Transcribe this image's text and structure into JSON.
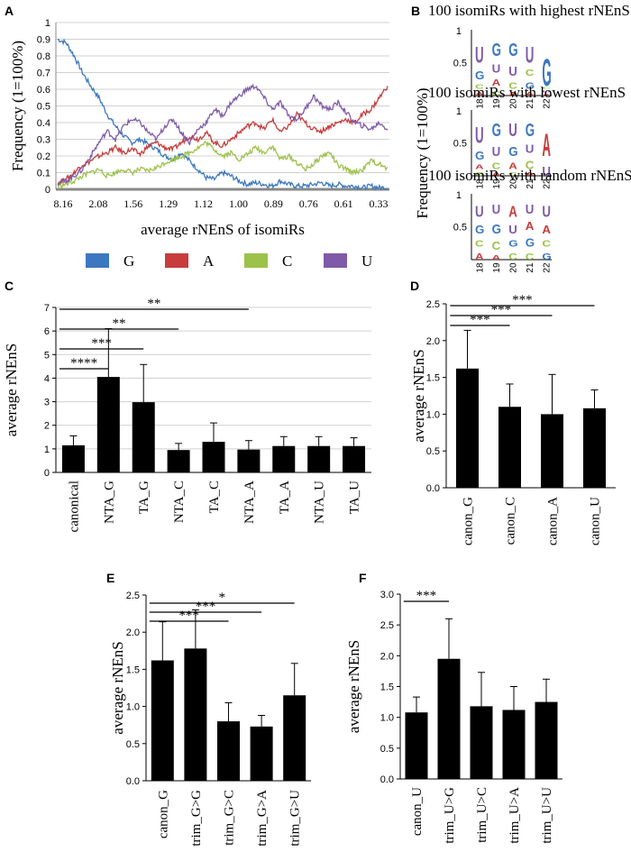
{
  "chart_data": [
    {
      "id": "A",
      "type": "line",
      "panel_label": "A",
      "ylabel": "Frequency (1=100%)",
      "xlabel": "average rNEnS of isomiRs",
      "ylim": [
        0,
        1
      ],
      "y_ticks": [
        "0",
        "0.1",
        "0.2",
        "0.3",
        "0.4",
        "0.5",
        "0.6",
        "0.7",
        "0.8",
        "0.9",
        "1"
      ],
      "x_ticks": [
        "8.16",
        "2.08",
        "1.56",
        "1.29",
        "1.12",
        "1.00",
        "0.89",
        "0.76",
        "0.61",
        "0.33"
      ],
      "series": [
        {
          "name": "G",
          "color": "#3c78c0",
          "values": [
            0.9,
            0.88,
            0.8,
            0.7,
            0.62,
            0.55,
            0.45,
            0.38,
            0.32,
            0.28,
            0.3,
            0.27,
            0.24,
            0.2,
            0.18,
            0.22,
            0.17,
            0.12,
            0.07,
            0.06,
            0.1,
            0.08,
            0.05,
            0.03,
            0.04,
            0.03,
            0.02,
            0.05,
            0.03,
            0.02,
            0.02,
            0.03,
            0.04,
            0.02,
            0.03,
            0.02,
            0.02,
            0.01,
            0.02,
            0.01,
            0.01
          ]
        },
        {
          "name": "A",
          "color": "#c83c3c",
          "values": [
            0.04,
            0.06,
            0.1,
            0.15,
            0.17,
            0.2,
            0.22,
            0.25,
            0.22,
            0.24,
            0.21,
            0.26,
            0.28,
            0.25,
            0.24,
            0.28,
            0.32,
            0.3,
            0.34,
            0.28,
            0.26,
            0.3,
            0.34,
            0.38,
            0.4,
            0.36,
            0.42,
            0.34,
            0.38,
            0.45,
            0.4,
            0.36,
            0.35,
            0.38,
            0.4,
            0.42,
            0.4,
            0.45,
            0.48,
            0.55,
            0.62
          ]
        },
        {
          "name": "C",
          "color": "#9cc24a",
          "values": [
            0.02,
            0.03,
            0.05,
            0.08,
            0.1,
            0.12,
            0.08,
            0.1,
            0.12,
            0.1,
            0.12,
            0.11,
            0.13,
            0.16,
            0.18,
            0.2,
            0.22,
            0.25,
            0.28,
            0.24,
            0.2,
            0.22,
            0.18,
            0.21,
            0.25,
            0.22,
            0.26,
            0.18,
            0.2,
            0.16,
            0.12,
            0.15,
            0.2,
            0.22,
            0.14,
            0.12,
            0.1,
            0.12,
            0.17,
            0.15,
            0.12
          ]
        },
        {
          "name": "U",
          "color": "#7f5aa8",
          "values": [
            0.04,
            0.05,
            0.08,
            0.12,
            0.2,
            0.28,
            0.35,
            0.3,
            0.38,
            0.42,
            0.4,
            0.34,
            0.3,
            0.38,
            0.42,
            0.34,
            0.28,
            0.36,
            0.4,
            0.48,
            0.44,
            0.52,
            0.56,
            0.6,
            0.62,
            0.55,
            0.48,
            0.52,
            0.44,
            0.42,
            0.48,
            0.56,
            0.5,
            0.48,
            0.52,
            0.46,
            0.4,
            0.38,
            0.36,
            0.4,
            0.36
          ]
        }
      ],
      "legend": [
        "G",
        "A",
        "C",
        "U"
      ],
      "legend_position": "bottom"
    },
    {
      "id": "C",
      "type": "bar",
      "panel_label": "C",
      "ylabel": "average rNEnS",
      "ylim": [
        0,
        7
      ],
      "y_ticks": [
        "0",
        "1",
        "2",
        "3",
        "4",
        "5",
        "6",
        "7"
      ],
      "categories": [
        "canonical",
        "NTA_G",
        "TA_G",
        "NTA_C",
        "TA_C",
        "NTA_A",
        "TA_A",
        "NTA_U",
        "TA_U"
      ],
      "values": [
        1.15,
        4.05,
        2.98,
        0.95,
        1.3,
        0.97,
        1.12,
        1.12,
        1.12
      ],
      "errors": [
        0.4,
        2.05,
        1.6,
        0.28,
        0.8,
        0.38,
        0.4,
        0.4,
        0.35
      ],
      "significance": [
        {
          "from": 0,
          "to": 1,
          "label": "****"
        },
        {
          "from": 0,
          "to": 2,
          "label": "***"
        },
        {
          "from": 0,
          "to": 3,
          "label": "**"
        },
        {
          "from": 0,
          "to": 5,
          "label": "**"
        }
      ]
    },
    {
      "id": "D",
      "type": "bar",
      "panel_label": "D",
      "ylabel": "average rNEnS",
      "ylim": [
        0,
        2.5
      ],
      "y_ticks": [
        "0.0",
        "0.5",
        "1.0",
        "1.5",
        "2.0",
        "2.5"
      ],
      "categories": [
        "canon_G",
        "canon_C",
        "canon_A",
        "canon_U"
      ],
      "values": [
        1.62,
        1.1,
        1.0,
        1.08
      ],
      "errors": [
        0.52,
        0.31,
        0.54,
        0.25
      ],
      "significance": [
        {
          "from": 0,
          "to": 1,
          "label": "***"
        },
        {
          "from": 0,
          "to": 2,
          "label": "***"
        },
        {
          "from": 0,
          "to": 3,
          "label": "***"
        }
      ]
    },
    {
      "id": "E",
      "type": "bar",
      "panel_label": "E",
      "ylabel": "average rNEnS",
      "ylim": [
        0,
        2.5
      ],
      "y_ticks": [
        "0.0",
        "0.5",
        "1.0",
        "1.5",
        "2.0",
        "2.5"
      ],
      "categories": [
        "canon_G",
        "trim_G>G",
        "trim_G>C",
        "trim_G>A",
        "trim_G>U"
      ],
      "values": [
        1.62,
        1.78,
        0.8,
        0.73,
        1.15
      ],
      "errors": [
        0.52,
        0.52,
        0.25,
        0.15,
        0.43
      ],
      "significance": [
        {
          "from": 0,
          "to": 2,
          "label": "***"
        },
        {
          "from": 0,
          "to": 3,
          "label": "***"
        },
        {
          "from": 0,
          "to": 4,
          "label": "*"
        }
      ]
    },
    {
      "id": "F",
      "type": "bar",
      "panel_label": "F",
      "ylabel": "average rNEnS",
      "ylim": [
        0,
        3.0
      ],
      "y_ticks": [
        "0.0",
        "0.5",
        "1.0",
        "1.5",
        "2.0",
        "2.5",
        "3.0"
      ],
      "categories": [
        "canon_U",
        "trim_U>G",
        "trim_U>C",
        "trim_U>A",
        "trim_U>U"
      ],
      "values": [
        1.08,
        1.95,
        1.18,
        1.12,
        1.25
      ],
      "errors": [
        0.25,
        0.65,
        0.55,
        0.38,
        0.37
      ],
      "significance": [
        {
          "from": 0,
          "to": 1,
          "label": "***"
        }
      ]
    }
  ],
  "panel_b": {
    "panel_label": "B",
    "ylabel": "Frequency (1=100%)",
    "y_ticks": [
      "1",
      "0.5"
    ],
    "positions": [
      "18",
      "19",
      "20",
      "21",
      "22"
    ],
    "colors": {
      "G": "#3c78c0",
      "A": "#c83c3c",
      "C": "#9cc24a",
      "U": "#7f5aa8"
    },
    "logos": [
      {
        "title": "100 isomiRs with highest rNEnS",
        "columns": [
          [
            {
              "base": "A",
              "freq": 0.1
            },
            {
              "base": "C",
              "freq": 0.15
            },
            {
              "base": "G",
              "freq": 0.25
            },
            {
              "base": "U",
              "freq": 0.5
            }
          ],
          [
            {
              "base": "C",
              "freq": 0.15
            },
            {
              "base": "A",
              "freq": 0.2
            },
            {
              "base": "U",
              "freq": 0.25
            },
            {
              "base": "G",
              "freq": 0.4
            }
          ],
          [
            {
              "base": "A",
              "freq": 0.1
            },
            {
              "base": "C",
              "freq": 0.2
            },
            {
              "base": "U",
              "freq": 0.3
            },
            {
              "base": "G",
              "freq": 0.4
            }
          ],
          [
            {
              "base": "A",
              "freq": 0.1
            },
            {
              "base": "G",
              "freq": 0.2
            },
            {
              "base": "C",
              "freq": 0.2
            },
            {
              "base": "U",
              "freq": 0.5
            }
          ],
          [
            {
              "base": "A",
              "freq": 0.05
            },
            {
              "base": "U",
              "freq": 0.05
            },
            {
              "base": "C",
              "freq": 0.05
            },
            {
              "base": "G",
              "freq": 0.85
            }
          ]
        ]
      },
      {
        "title": "100 isomiRs with lowest rNEnS",
        "columns": [
          [
            {
              "base": "C",
              "freq": 0.1
            },
            {
              "base": "A",
              "freq": 0.15
            },
            {
              "base": "G",
              "freq": 0.25
            },
            {
              "base": "U",
              "freq": 0.5
            }
          ],
          [
            {
              "base": "A",
              "freq": 0.1
            },
            {
              "base": "C",
              "freq": 0.2
            },
            {
              "base": "U",
              "freq": 0.3
            },
            {
              "base": "G",
              "freq": 0.4
            }
          ],
          [
            {
              "base": "C",
              "freq": 0.1
            },
            {
              "base": "A",
              "freq": 0.2
            },
            {
              "base": "G",
              "freq": 0.3
            },
            {
              "base": "U",
              "freq": 0.4
            }
          ],
          [
            {
              "base": "A",
              "freq": 0.1
            },
            {
              "base": "C",
              "freq": 0.25
            },
            {
              "base": "U",
              "freq": 0.25
            },
            {
              "base": "G",
              "freq": 0.4
            }
          ],
          [
            {
              "base": "U",
              "freq": 0.3
            },
            {
              "base": "A",
              "freq": 0.7
            }
          ]
        ]
      },
      {
        "title": "100 isomiRs with random rNEnS",
        "columns": [
          [
            {
              "base": "A",
              "freq": 0.2
            },
            {
              "base": "C",
              "freq": 0.2
            },
            {
              "base": "G",
              "freq": 0.25
            },
            {
              "base": "U",
              "freq": 0.35
            }
          ],
          [
            {
              "base": "A",
              "freq": 0.15
            },
            {
              "base": "C",
              "freq": 0.25
            },
            {
              "base": "G",
              "freq": 0.3
            },
            {
              "base": "U",
              "freq": 0.3
            }
          ],
          [
            {
              "base": "C",
              "freq": 0.2
            },
            {
              "base": "G",
              "freq": 0.2
            },
            {
              "base": "U",
              "freq": 0.25
            },
            {
              "base": "A",
              "freq": 0.35
            }
          ],
          [
            {
              "base": "C",
              "freq": 0.2
            },
            {
              "base": "G",
              "freq": 0.25
            },
            {
              "base": "A",
              "freq": 0.25
            },
            {
              "base": "U",
              "freq": 0.3
            }
          ],
          [
            {
              "base": "G",
              "freq": 0.2
            },
            {
              "base": "C",
              "freq": 0.2
            },
            {
              "base": "A",
              "freq": 0.25
            },
            {
              "base": "U",
              "freq": 0.35
            }
          ]
        ]
      }
    ]
  }
}
